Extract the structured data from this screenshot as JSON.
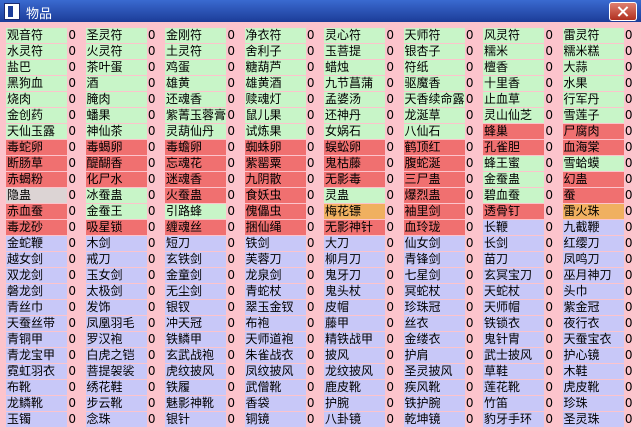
{
  "title": "物品",
  "rows": [
    [
      {
        "name": "观音符",
        "count": 0,
        "color": "#c8f5c8"
      },
      {
        "name": "圣灵符",
        "count": 0,
        "color": "#c8f5c8"
      },
      {
        "name": "金刚符",
        "count": 0,
        "color": "#c8f5c8"
      },
      {
        "name": "净衣符",
        "count": 0,
        "color": "#c8f5c8"
      },
      {
        "name": "灵心符",
        "count": 0,
        "color": "#c8f5c8"
      },
      {
        "name": "天师符",
        "count": 0,
        "color": "#c8f5c8"
      },
      {
        "name": "风灵符",
        "count": 0,
        "color": "#c8f5c8"
      },
      {
        "name": "雷灵符",
        "count": 0,
        "color": "#c8f5c8"
      }
    ],
    [
      {
        "name": "水灵符",
        "count": 0,
        "color": "#c8f5c8"
      },
      {
        "name": "火灵符",
        "count": 0,
        "color": "#c8f5c8"
      },
      {
        "name": "土灵符",
        "count": 0,
        "color": "#c8f5c8"
      },
      {
        "name": "舍利子",
        "count": 0,
        "color": "#c8f5c8"
      },
      {
        "name": "玉菩提",
        "count": 0,
        "color": "#c8f5c8"
      },
      {
        "name": "银杏子",
        "count": 0,
        "color": "#c8f5c8"
      },
      {
        "name": "糯米",
        "count": 0,
        "color": "#c8f5c8"
      },
      {
        "name": "糯米糕",
        "count": 0,
        "color": "#c8f5c8"
      }
    ],
    [
      {
        "name": "盐巴",
        "count": 0,
        "color": "#c8f5c8"
      },
      {
        "name": "茶叶蛋",
        "count": 0,
        "color": "#c8f5c8"
      },
      {
        "name": "鸡蛋",
        "count": 0,
        "color": "#c8f5c8"
      },
      {
        "name": "糖葫芦",
        "count": 0,
        "color": "#c8f5c8"
      },
      {
        "name": "蜡烛",
        "count": 0,
        "color": "#c8f5c8"
      },
      {
        "name": "符纸",
        "count": 0,
        "color": "#c8f5c8"
      },
      {
        "name": "檀香",
        "count": 0,
        "color": "#c8f5c8"
      },
      {
        "name": "大蒜",
        "count": 0,
        "color": "#c8f5c8"
      }
    ],
    [
      {
        "name": "黑狗血",
        "count": 0,
        "color": "#c8f5c8"
      },
      {
        "name": "酒",
        "count": 0,
        "color": "#c8f5c8"
      },
      {
        "name": "雄黄",
        "count": 0,
        "color": "#c8f5c8"
      },
      {
        "name": "雄黄酒",
        "count": 0,
        "color": "#c8f5c8"
      },
      {
        "name": "九节菖蒲",
        "count": 0,
        "color": "#c8f5c8"
      },
      {
        "name": "驱魔香",
        "count": 0,
        "color": "#c8f5c8"
      },
      {
        "name": "十里香",
        "count": 0,
        "color": "#c8f5c8"
      },
      {
        "name": "水果",
        "count": 0,
        "color": "#c8f5c8"
      }
    ],
    [
      {
        "name": "烧肉",
        "count": 0,
        "color": "#c8f5c8"
      },
      {
        "name": "腌肉",
        "count": 0,
        "color": "#c8f5c8"
      },
      {
        "name": "还魂香",
        "count": 0,
        "color": "#c8f5c8"
      },
      {
        "name": "赎魂灯",
        "count": 0,
        "color": "#c8f5c8"
      },
      {
        "name": "孟婆汤",
        "count": 0,
        "color": "#c8f5c8"
      },
      {
        "name": "天香续命露",
        "count": 0,
        "color": "#c8f5c8"
      },
      {
        "name": "止血草",
        "count": 0,
        "color": "#c8f5c8"
      },
      {
        "name": "行军丹",
        "count": 0,
        "color": "#c8f5c8"
      }
    ],
    [
      {
        "name": "金创药",
        "count": 0,
        "color": "#c8f5c8"
      },
      {
        "name": "蟠果",
        "count": 0,
        "color": "#c8f5c8"
      },
      {
        "name": "紫菁玉蓉膏",
        "count": 0,
        "color": "#c8f5c8"
      },
      {
        "name": "鼠儿果",
        "count": 0,
        "color": "#c8f5c8"
      },
      {
        "name": "还神丹",
        "count": 0,
        "color": "#c8f5c8"
      },
      {
        "name": "龙涎草",
        "count": 0,
        "color": "#c8f5c8"
      },
      {
        "name": "灵山仙芝",
        "count": 0,
        "color": "#c8f5c8"
      },
      {
        "name": "雪莲子",
        "count": 0,
        "color": "#c8f5c8"
      }
    ],
    [
      {
        "name": "天仙玉露",
        "count": 0,
        "color": "#c8f5c8"
      },
      {
        "name": "神仙茶",
        "count": 0,
        "color": "#c8f5c8"
      },
      {
        "name": "灵葫仙丹",
        "count": 0,
        "color": "#c8f5c8"
      },
      {
        "name": "试炼果",
        "count": 0,
        "color": "#c8f5c8"
      },
      {
        "name": "女娲石",
        "count": 0,
        "color": "#c8f5c8"
      },
      {
        "name": "八仙石",
        "count": 0,
        "color": "#c8f5c8"
      },
      {
        "name": "蜂巢",
        "count": 0,
        "color": "#f07070"
      },
      {
        "name": "尸腐肉",
        "count": 0,
        "color": "#f07070"
      }
    ],
    [
      {
        "name": "毒蛇卵",
        "count": 0,
        "color": "#f07070"
      },
      {
        "name": "毒蝎卵",
        "count": 0,
        "color": "#f07070"
      },
      {
        "name": "毒蟾卵",
        "count": 0,
        "color": "#f07070"
      },
      {
        "name": "蜘蛛卵",
        "count": 0,
        "color": "#f07070"
      },
      {
        "name": "蜈蚣卵",
        "count": 0,
        "color": "#f07070"
      },
      {
        "name": "鹤顶红",
        "count": 0,
        "color": "#f07070"
      },
      {
        "name": "孔雀胆",
        "count": 0,
        "color": "#f07070"
      },
      {
        "name": "血海棠",
        "count": 0,
        "color": "#f07070"
      }
    ],
    [
      {
        "name": "断肠草",
        "count": 0,
        "color": "#f07070"
      },
      {
        "name": "醍醐香",
        "count": 0,
        "color": "#f07070"
      },
      {
        "name": "忘魂花",
        "count": 0,
        "color": "#f07070"
      },
      {
        "name": "紫罂粟",
        "count": 0,
        "color": "#f07070"
      },
      {
        "name": "鬼枯藤",
        "count": 0,
        "color": "#f07070"
      },
      {
        "name": "腹蛇涎",
        "count": 0,
        "color": "#f07070"
      },
      {
        "name": "蜂王蜜",
        "count": 0,
        "color": "#c8f5c8"
      },
      {
        "name": "雪蛤蟆",
        "count": 0,
        "color": "#c8f5c8"
      }
    ],
    [
      {
        "name": "赤蝎粉",
        "count": 0,
        "color": "#f07070"
      },
      {
        "name": "化尸水",
        "count": 0,
        "color": "#f07070"
      },
      {
        "name": "迷魂香",
        "count": 0,
        "color": "#f07070"
      },
      {
        "name": "九阴散",
        "count": 0,
        "color": "#f07070"
      },
      {
        "name": "无影毒",
        "count": 0,
        "color": "#f07070"
      },
      {
        "name": "三尸蛊",
        "count": 0,
        "color": "#f07070"
      },
      {
        "name": "金蚕蛊",
        "count": 0,
        "color": "#c8f5c8"
      },
      {
        "name": "幻蛊",
        "count": 0,
        "color": "#f07070"
      }
    ],
    [
      {
        "name": "隐蛊",
        "count": 0,
        "color": "#dcd4d4"
      },
      {
        "name": "冰蚕蛊",
        "count": 0,
        "color": "#c8f5c8"
      },
      {
        "name": "火蚕蛊",
        "count": 0,
        "color": "#f07070"
      },
      {
        "name": "食妖虫",
        "count": 0,
        "color": "#f07070"
      },
      {
        "name": "灵蛊",
        "count": 0,
        "color": "#c8f5c8"
      },
      {
        "name": "爆烈蛊",
        "count": 0,
        "color": "#f07070"
      },
      {
        "name": "碧血蚕",
        "count": 0,
        "color": "#c8f5c8"
      },
      {
        "name": "蚕",
        "count": 0,
        "color": "#f07070"
      }
    ],
    [
      {
        "name": "赤血蚕",
        "count": 0,
        "color": "#f07070"
      },
      {
        "name": "金蚕王",
        "count": 0,
        "color": "#c8f5c8"
      },
      {
        "name": "引路蜂",
        "count": 0,
        "color": "#c8f5c8"
      },
      {
        "name": "傀儡虫",
        "count": 0,
        "color": "#f07070"
      },
      {
        "name": "梅花镖",
        "count": 0,
        "color": "#f0b060"
      },
      {
        "name": "袖里剑",
        "count": 0,
        "color": "#f07070"
      },
      {
        "name": "透骨钉",
        "count": 0,
        "color": "#f07070"
      },
      {
        "name": "雷火珠",
        "count": 0,
        "color": "#f0b060"
      }
    ],
    [
      {
        "name": "毒龙砂",
        "count": 0,
        "color": "#f07070"
      },
      {
        "name": "吸星锁",
        "count": 0,
        "color": "#f07070"
      },
      {
        "name": "缠魂丝",
        "count": 0,
        "color": "#f07070"
      },
      {
        "name": "捆仙绳",
        "count": 0,
        "color": "#f07070"
      },
      {
        "name": "无影神针",
        "count": 0,
        "color": "#f07070"
      },
      {
        "name": "血玲珑",
        "count": 0,
        "color": "#f07070"
      },
      {
        "name": "长鞭",
        "count": 0,
        "color": "#c8c8f8"
      },
      {
        "name": "九截鞭",
        "count": 0,
        "color": "#c8c8f8"
      }
    ],
    [
      {
        "name": "金蛇鞭",
        "count": 0,
        "color": "#c8c8f8"
      },
      {
        "name": "木剑",
        "count": 0,
        "color": "#c8c8f8"
      },
      {
        "name": "短刀",
        "count": 0,
        "color": "#c8c8f8"
      },
      {
        "name": "铁剑",
        "count": 0,
        "color": "#c8c8f8"
      },
      {
        "name": "大刀",
        "count": 0,
        "color": "#c8c8f8"
      },
      {
        "name": "仙女剑",
        "count": 0,
        "color": "#c8c8f8"
      },
      {
        "name": "长剑",
        "count": 0,
        "color": "#c8c8f8"
      },
      {
        "name": "红缨刀",
        "count": 0,
        "color": "#c8c8f8"
      }
    ],
    [
      {
        "name": "越女剑",
        "count": 0,
        "color": "#c8c8f8"
      },
      {
        "name": "戒刀",
        "count": 0,
        "color": "#c8c8f8"
      },
      {
        "name": "玄铁剑",
        "count": 0,
        "color": "#c8c8f8"
      },
      {
        "name": "芙蓉刀",
        "count": 0,
        "color": "#c8c8f8"
      },
      {
        "name": "柳月刀",
        "count": 0,
        "color": "#c8c8f8"
      },
      {
        "name": "青锋剑",
        "count": 0,
        "color": "#c8c8f8"
      },
      {
        "name": "苗刀",
        "count": 0,
        "color": "#c8c8f8"
      },
      {
        "name": "凤鸣刀",
        "count": 0,
        "color": "#c8c8f8"
      }
    ],
    [
      {
        "name": "双龙剑",
        "count": 0,
        "color": "#c8c8f8"
      },
      {
        "name": "玉女剑",
        "count": 0,
        "color": "#c8c8f8"
      },
      {
        "name": "金童剑",
        "count": 0,
        "color": "#c8c8f8"
      },
      {
        "name": "龙泉剑",
        "count": 0,
        "color": "#c8c8f8"
      },
      {
        "name": "鬼牙刀",
        "count": 0,
        "color": "#c8c8f8"
      },
      {
        "name": "七星剑",
        "count": 0,
        "color": "#c8c8f8"
      },
      {
        "name": "玄冥宝刀",
        "count": 0,
        "color": "#c8c8f8"
      },
      {
        "name": "巫月神刀",
        "count": 0,
        "color": "#c8c8f8"
      }
    ],
    [
      {
        "name": "磐龙剑",
        "count": 0,
        "color": "#c8c8f8"
      },
      {
        "name": "太极剑",
        "count": 0,
        "color": "#c8c8f8"
      },
      {
        "name": "无尘剑",
        "count": 0,
        "color": "#c8c8f8"
      },
      {
        "name": "青蛇杖",
        "count": 0,
        "color": "#c8c8f8"
      },
      {
        "name": "鬼头杖",
        "count": 0,
        "color": "#c8c8f8"
      },
      {
        "name": "冥蛇杖",
        "count": 0,
        "color": "#c8c8f8"
      },
      {
        "name": "天蛇杖",
        "count": 0,
        "color": "#c8c8f8"
      },
      {
        "name": "头巾",
        "count": 0,
        "color": "#c8c8f8"
      }
    ],
    [
      {
        "name": "青丝巾",
        "count": 0,
        "color": "#c8c8f8"
      },
      {
        "name": "发饰",
        "count": 0,
        "color": "#c8c8f8"
      },
      {
        "name": "银钗",
        "count": 0,
        "color": "#c8c8f8"
      },
      {
        "name": "翠玉金钗",
        "count": 0,
        "color": "#c8c8f8"
      },
      {
        "name": "皮帽",
        "count": 0,
        "color": "#c8c8f8"
      },
      {
        "name": "珍珠冠",
        "count": 0,
        "color": "#c8c8f8"
      },
      {
        "name": "天师帽",
        "count": 0,
        "color": "#c8c8f8"
      },
      {
        "name": "紫金冠",
        "count": 0,
        "color": "#c8c8f8"
      }
    ],
    [
      {
        "name": "天蚕丝带",
        "count": 0,
        "color": "#c8c8f8"
      },
      {
        "name": "凤凰羽毛",
        "count": 0,
        "color": "#c8c8f8"
      },
      {
        "name": "冲天冠",
        "count": 0,
        "color": "#c8c8f8"
      },
      {
        "name": "布袍",
        "count": 0,
        "color": "#c8c8f8"
      },
      {
        "name": "藤甲",
        "count": 0,
        "color": "#c8c8f8"
      },
      {
        "name": "丝衣",
        "count": 0,
        "color": "#c8c8f8"
      },
      {
        "name": "铁锁衣",
        "count": 0,
        "color": "#c8c8f8"
      },
      {
        "name": "夜行衣",
        "count": 0,
        "color": "#c8c8f8"
      }
    ],
    [
      {
        "name": "青铜甲",
        "count": 0,
        "color": "#c8c8f8"
      },
      {
        "name": "罗汉袍",
        "count": 0,
        "color": "#c8c8f8"
      },
      {
        "name": "铁鳞甲",
        "count": 0,
        "color": "#c8c8f8"
      },
      {
        "name": "天师道袍",
        "count": 0,
        "color": "#c8c8f8"
      },
      {
        "name": "精铁战甲",
        "count": 0,
        "color": "#c8c8f8"
      },
      {
        "name": "金缕衣",
        "count": 0,
        "color": "#c8c8f8"
      },
      {
        "name": "鬼针胄",
        "count": 0,
        "color": "#c8c8f8"
      },
      {
        "name": "天蚕宝衣",
        "count": 0,
        "color": "#c8c8f8"
      }
    ],
    [
      {
        "name": "青龙宝甲",
        "count": 0,
        "color": "#c8c8f8"
      },
      {
        "name": "白虎之铠",
        "count": 0,
        "color": "#c8c8f8"
      },
      {
        "name": "玄武战袍",
        "count": 0,
        "color": "#c8c8f8"
      },
      {
        "name": "朱雀战衣",
        "count": 0,
        "color": "#c8c8f8"
      },
      {
        "name": "披风",
        "count": 0,
        "color": "#c8c8f8"
      },
      {
        "name": "护肩",
        "count": 0,
        "color": "#c8c8f8"
      },
      {
        "name": "武士披风",
        "count": 0,
        "color": "#c8c8f8"
      },
      {
        "name": "护心镜",
        "count": 0,
        "color": "#c8c8f8"
      }
    ],
    [
      {
        "name": "霓虹羽衣",
        "count": 0,
        "color": "#c8c8f8"
      },
      {
        "name": "菩提袈裟",
        "count": 0,
        "color": "#c8c8f8"
      },
      {
        "name": "虎纹披风",
        "count": 0,
        "color": "#c8c8f8"
      },
      {
        "name": "凤纹披风",
        "count": 0,
        "color": "#c8c8f8"
      },
      {
        "name": "龙纹披风",
        "count": 0,
        "color": "#c8c8f8"
      },
      {
        "name": "圣灵披风",
        "count": 0,
        "color": "#c8c8f8"
      },
      {
        "name": "草鞋",
        "count": 0,
        "color": "#c8c8f8"
      },
      {
        "name": "木鞋",
        "count": 0,
        "color": "#c8c8f8"
      }
    ],
    [
      {
        "name": "布靴",
        "count": 0,
        "color": "#c8c8f8"
      },
      {
        "name": "绣花鞋",
        "count": 0,
        "color": "#c8c8f8"
      },
      {
        "name": "铁履",
        "count": 0,
        "color": "#c8c8f8"
      },
      {
        "name": "武僧靴",
        "count": 0,
        "color": "#c8c8f8"
      },
      {
        "name": "鹿皮靴",
        "count": 0,
        "color": "#c8c8f8"
      },
      {
        "name": "疾风靴",
        "count": 0,
        "color": "#c8c8f8"
      },
      {
        "name": "莲花靴",
        "count": 0,
        "color": "#c8c8f8"
      },
      {
        "name": "虎皮靴",
        "count": 0,
        "color": "#c8c8f8"
      }
    ],
    [
      {
        "name": "龙鳞靴",
        "count": 0,
        "color": "#c8c8f8"
      },
      {
        "name": "步云靴",
        "count": 0,
        "color": "#c8c8f8"
      },
      {
        "name": "魅影神靴",
        "count": 0,
        "color": "#c8c8f8"
      },
      {
        "name": "香袋",
        "count": 0,
        "color": "#c8c8f8"
      },
      {
        "name": "护腕",
        "count": 0,
        "color": "#c8c8f8"
      },
      {
        "name": "铁护腕",
        "count": 0,
        "color": "#c8c8f8"
      },
      {
        "name": "竹笛",
        "count": 0,
        "color": "#c8c8f8"
      },
      {
        "name": "珍珠",
        "count": 0,
        "color": "#c8c8f8"
      }
    ],
    [
      {
        "name": "玉镯",
        "count": 0,
        "color": "#c8c8f8"
      },
      {
        "name": "念珠",
        "count": 0,
        "color": "#c8c8f8"
      },
      {
        "name": "银针",
        "count": 0,
        "color": "#c8c8f8"
      },
      {
        "name": "铜镜",
        "count": 0,
        "color": "#c8c8f8"
      },
      {
        "name": "八卦镜",
        "count": 0,
        "color": "#c8c8f8"
      },
      {
        "name": "乾坤镜",
        "count": 0,
        "color": "#c8c8f8"
      },
      {
        "name": "豹牙手环",
        "count": 0,
        "color": "#c8c8f8"
      },
      {
        "name": "圣灵珠",
        "count": 0,
        "color": "#c8c8f8"
      }
    ]
  ]
}
